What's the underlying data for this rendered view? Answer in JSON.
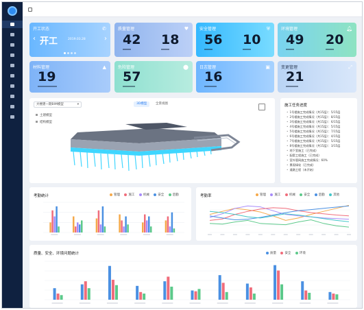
{
  "topbar": {
    "menu_icon": "menu-icon"
  },
  "sidebar": {
    "logo_icon": "logo-icon",
    "items": [
      "nav-1",
      "nav-2",
      "nav-3",
      "nav-4",
      "nav-5",
      "nav-6",
      "nav-7",
      "nav-8",
      "nav-9",
      "nav-10"
    ]
  },
  "cards": {
    "status": {
      "title": "开工状态",
      "value": "开工",
      "date": "2019.03.28"
    },
    "c2": {
      "title": "质量管理",
      "a": "42",
      "b": "18"
    },
    "c3": {
      "title": "安全管理",
      "a": "56",
      "b": "10"
    },
    "c4": {
      "title": "环境管理",
      "a": "49",
      "b": "20"
    },
    "c5": {
      "title": "材料管理",
      "a": "19"
    },
    "c6": {
      "title": "危险管理",
      "a": "57"
    },
    "c7": {
      "title": "日志管理",
      "a": "16"
    },
    "c8": {
      "title": "变更管理",
      "a": "21"
    }
  },
  "model_panel": {
    "dropdown": "大楼建一期BIM模型",
    "tabs": [
      "3D模型",
      "全景视图"
    ],
    "options": [
      "土建模型",
      "结构模型"
    ]
  },
  "progress_panel": {
    "title": "施工任务进度",
    "items": [
      "1号楼施工完成情况（共15层）：5/15层",
      "2号楼施工完成情况（共15层）：8/15层",
      "3号楼施工完成情况（共15层）：6/15层",
      "4号楼施工完成情况（共15层）：5/15层",
      "5号楼施工完成情况（共15层）：7/15层",
      "6号楼施工完成情况（共15层）：4/15层",
      "7号楼施工完成情况（共15层）：5/15层",
      "8号楼施工完成情况（共15层）：3/15层",
      "地下室施工（已完成）",
      "配套工程施工（已完成）",
      "室外管网施工完成情况：60%",
      "景观绿化（已完成）",
      "道路工程（未开始）"
    ]
  },
  "colors": {
    "blue": "#4a90e2",
    "red": "#f06c7b",
    "green": "#5cc98a",
    "orange": "#f5a94a",
    "purple": "#a78bfa",
    "teal": "#43c6c9"
  },
  "chart_data": [
    {
      "type": "bar",
      "title": "考勤统计",
      "series": [
        {
          "name": "管理",
          "values": [
            5,
            8,
            7,
            9,
            5,
            6
          ]
        },
        {
          "name": "施工",
          "values": [
            11,
            3,
            11,
            6,
            9,
            8
          ]
        },
        {
          "name": "机械",
          "values": [
            8,
            5,
            4,
            3,
            6,
            3
          ]
        },
        {
          "name": "安全",
          "values": [
            13,
            4,
            13,
            8,
            8,
            10
          ]
        },
        {
          "name": "后勤",
          "values": [
            3,
            6,
            3,
            4,
            3,
            2
          ]
        }
      ],
      "ylim": [
        0,
        15
      ]
    },
    {
      "type": "line",
      "title": "考勤率",
      "x": [
        "1",
        "2",
        "3",
        "4",
        "5",
        "6",
        "7",
        "8",
        "9",
        "10",
        "11",
        "12"
      ],
      "series": [
        {
          "name": "管理",
          "values": [
            60,
            70,
            80,
            75,
            68,
            55,
            40,
            48,
            60,
            70,
            80,
            90
          ]
        },
        {
          "name": "施工",
          "values": [
            50,
            62,
            80,
            88,
            85,
            72,
            60,
            55,
            52,
            48,
            46,
            44
          ]
        },
        {
          "name": "机械",
          "values": [
            40,
            45,
            60,
            70,
            78,
            82,
            80,
            72,
            66,
            62,
            58,
            55
          ]
        },
        {
          "name": "安全",
          "values": [
            30,
            28,
            35,
            40,
            30,
            28,
            26,
            35,
            42,
            30,
            22,
            18
          ]
        },
        {
          "name": "后勤",
          "values": [
            55,
            48,
            42,
            44,
            50,
            58,
            66,
            72,
            76,
            80,
            84,
            88
          ]
        },
        {
          "name": "其他",
          "values": [
            70,
            66,
            60,
            52,
            48,
            55,
            62,
            58,
            52,
            46,
            40,
            36
          ]
        }
      ],
      "ylim": [
        0,
        100
      ]
    },
    {
      "type": "bar",
      "title": "质量、安全、环境问题统计",
      "categories": [
        "1",
        "2",
        "3",
        "4",
        "5",
        "6",
        "7",
        "8",
        "9",
        "10",
        "11"
      ],
      "series": [
        {
          "name": "质量",
          "values": [
            15,
            20,
            44,
            18,
            24,
            12,
            32,
            21,
            45,
            24,
            10
          ]
        },
        {
          "name": "安全",
          "values": [
            8,
            24,
            26,
            10,
            30,
            11,
            22,
            16,
            38,
            12,
            8
          ]
        },
        {
          "name": "环境",
          "values": [
            6,
            15,
            19,
            8,
            17,
            14,
            10,
            8,
            20,
            9,
            7
          ]
        }
      ],
      "ylim": [
        0,
        50
      ]
    }
  ]
}
